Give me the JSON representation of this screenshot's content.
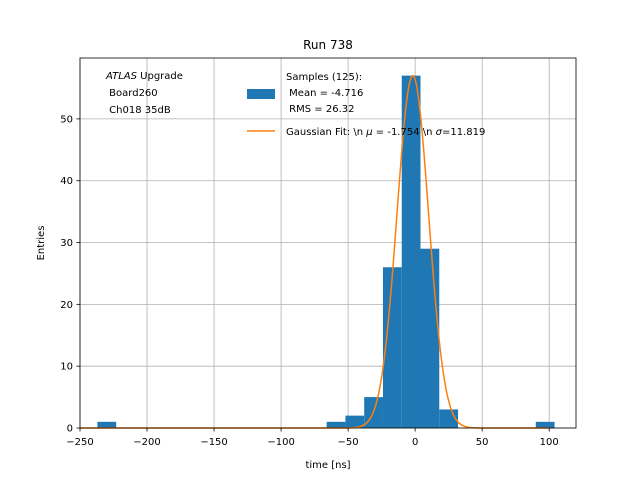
{
  "chart_data": {
    "type": "bar",
    "title": "Run 738",
    "xlabel": "time [ns]",
    "ylabel": "Entries",
    "xlim": [
      -250,
      120
    ],
    "ylim": [
      0,
      59.85
    ],
    "xticks": [
      -250,
      -200,
      -150,
      -100,
      -50,
      0,
      50,
      100
    ],
    "yticks": [
      0,
      10,
      20,
      30,
      40,
      50
    ],
    "grid": true,
    "legend_position": "top-right",
    "annotation": {
      "line1_italic": "ATLAS",
      "line1_rest": " Upgrade",
      "line2": " Board260",
      "line3": " Ch018 35dB"
    },
    "histogram": {
      "name_lines": [
        "Samples (125):",
        " Mean = -4.716",
        " RMS = 26.32"
      ],
      "color": "#1f77b4",
      "bins": [
        {
          "x0": -237,
          "x1": -223,
          "count": 1
        },
        {
          "x0": -66,
          "x1": -52,
          "count": 1
        },
        {
          "x0": -52,
          "x1": -38,
          "count": 2
        },
        {
          "x0": -38,
          "x1": -24,
          "count": 5
        },
        {
          "x0": -24,
          "x1": -10,
          "count": 26
        },
        {
          "x0": -10,
          "x1": 4,
          "count": 57
        },
        {
          "x0": 4,
          "x1": 18,
          "count": 29
        },
        {
          "x0": 18,
          "x1": 32,
          "count": 3
        },
        {
          "x0": 90,
          "x1": 104,
          "count": 1
        }
      ]
    },
    "fit": {
      "name": "Gaussian Fit: \\n $\\mu$ = -1.754 \\n $\\sigma$=11.819",
      "legend_parts": [
        "Gaussian Fit: \\n ",
        "μ",
        " = -1.754 \\n ",
        "σ",
        "=11.819"
      ],
      "color": "#ff7f0e",
      "mu": -1.754,
      "sigma": 11.819,
      "amplitude": 57,
      "x_range": [
        -250,
        100
      ]
    }
  }
}
